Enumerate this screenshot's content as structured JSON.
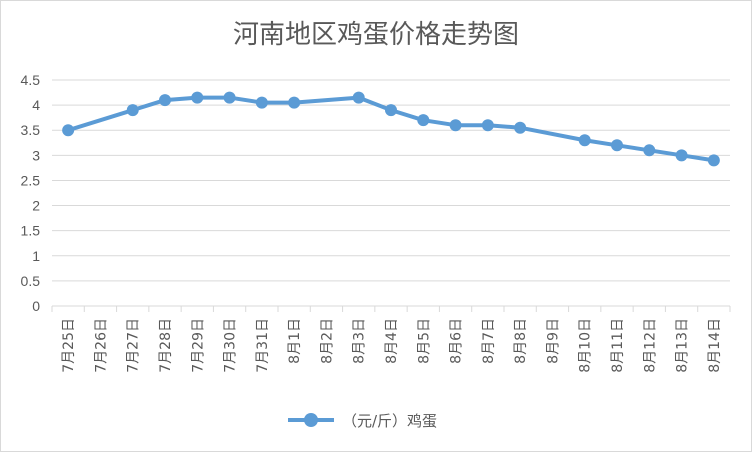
{
  "chart_data": {
    "type": "line",
    "title": "河南地区鸡蛋价格走势图",
    "categories": [
      "7月25日",
      "7月26日",
      "7月27日",
      "7月28日",
      "7月29日",
      "7月30日",
      "7月31日",
      "8月1日",
      "8月2日",
      "8月3日",
      "8月4日",
      "8月5日",
      "8月6日",
      "8月7日",
      "8月8日",
      "8月9日",
      "8月10日",
      "8月11日",
      "8月12日",
      "8月13日",
      "8月14日"
    ],
    "series": [
      {
        "name": "（元/斤）鸡蛋",
        "color": "#5b9bd5",
        "values": [
          3.5,
          null,
          3.9,
          4.1,
          4.15,
          4.15,
          4.05,
          4.05,
          null,
          4.15,
          3.9,
          3.7,
          3.6,
          3.6,
          3.55,
          null,
          3.3,
          3.2,
          3.1,
          3.0,
          2.9
        ]
      }
    ],
    "yticks": [
      "0",
      "0.5",
      "1",
      "1.5",
      "2",
      "2.5",
      "3",
      "3.5",
      "4",
      "4.5"
    ],
    "ylim": [
      0,
      4.5
    ],
    "grid": true,
    "legend_position": "bottom"
  }
}
